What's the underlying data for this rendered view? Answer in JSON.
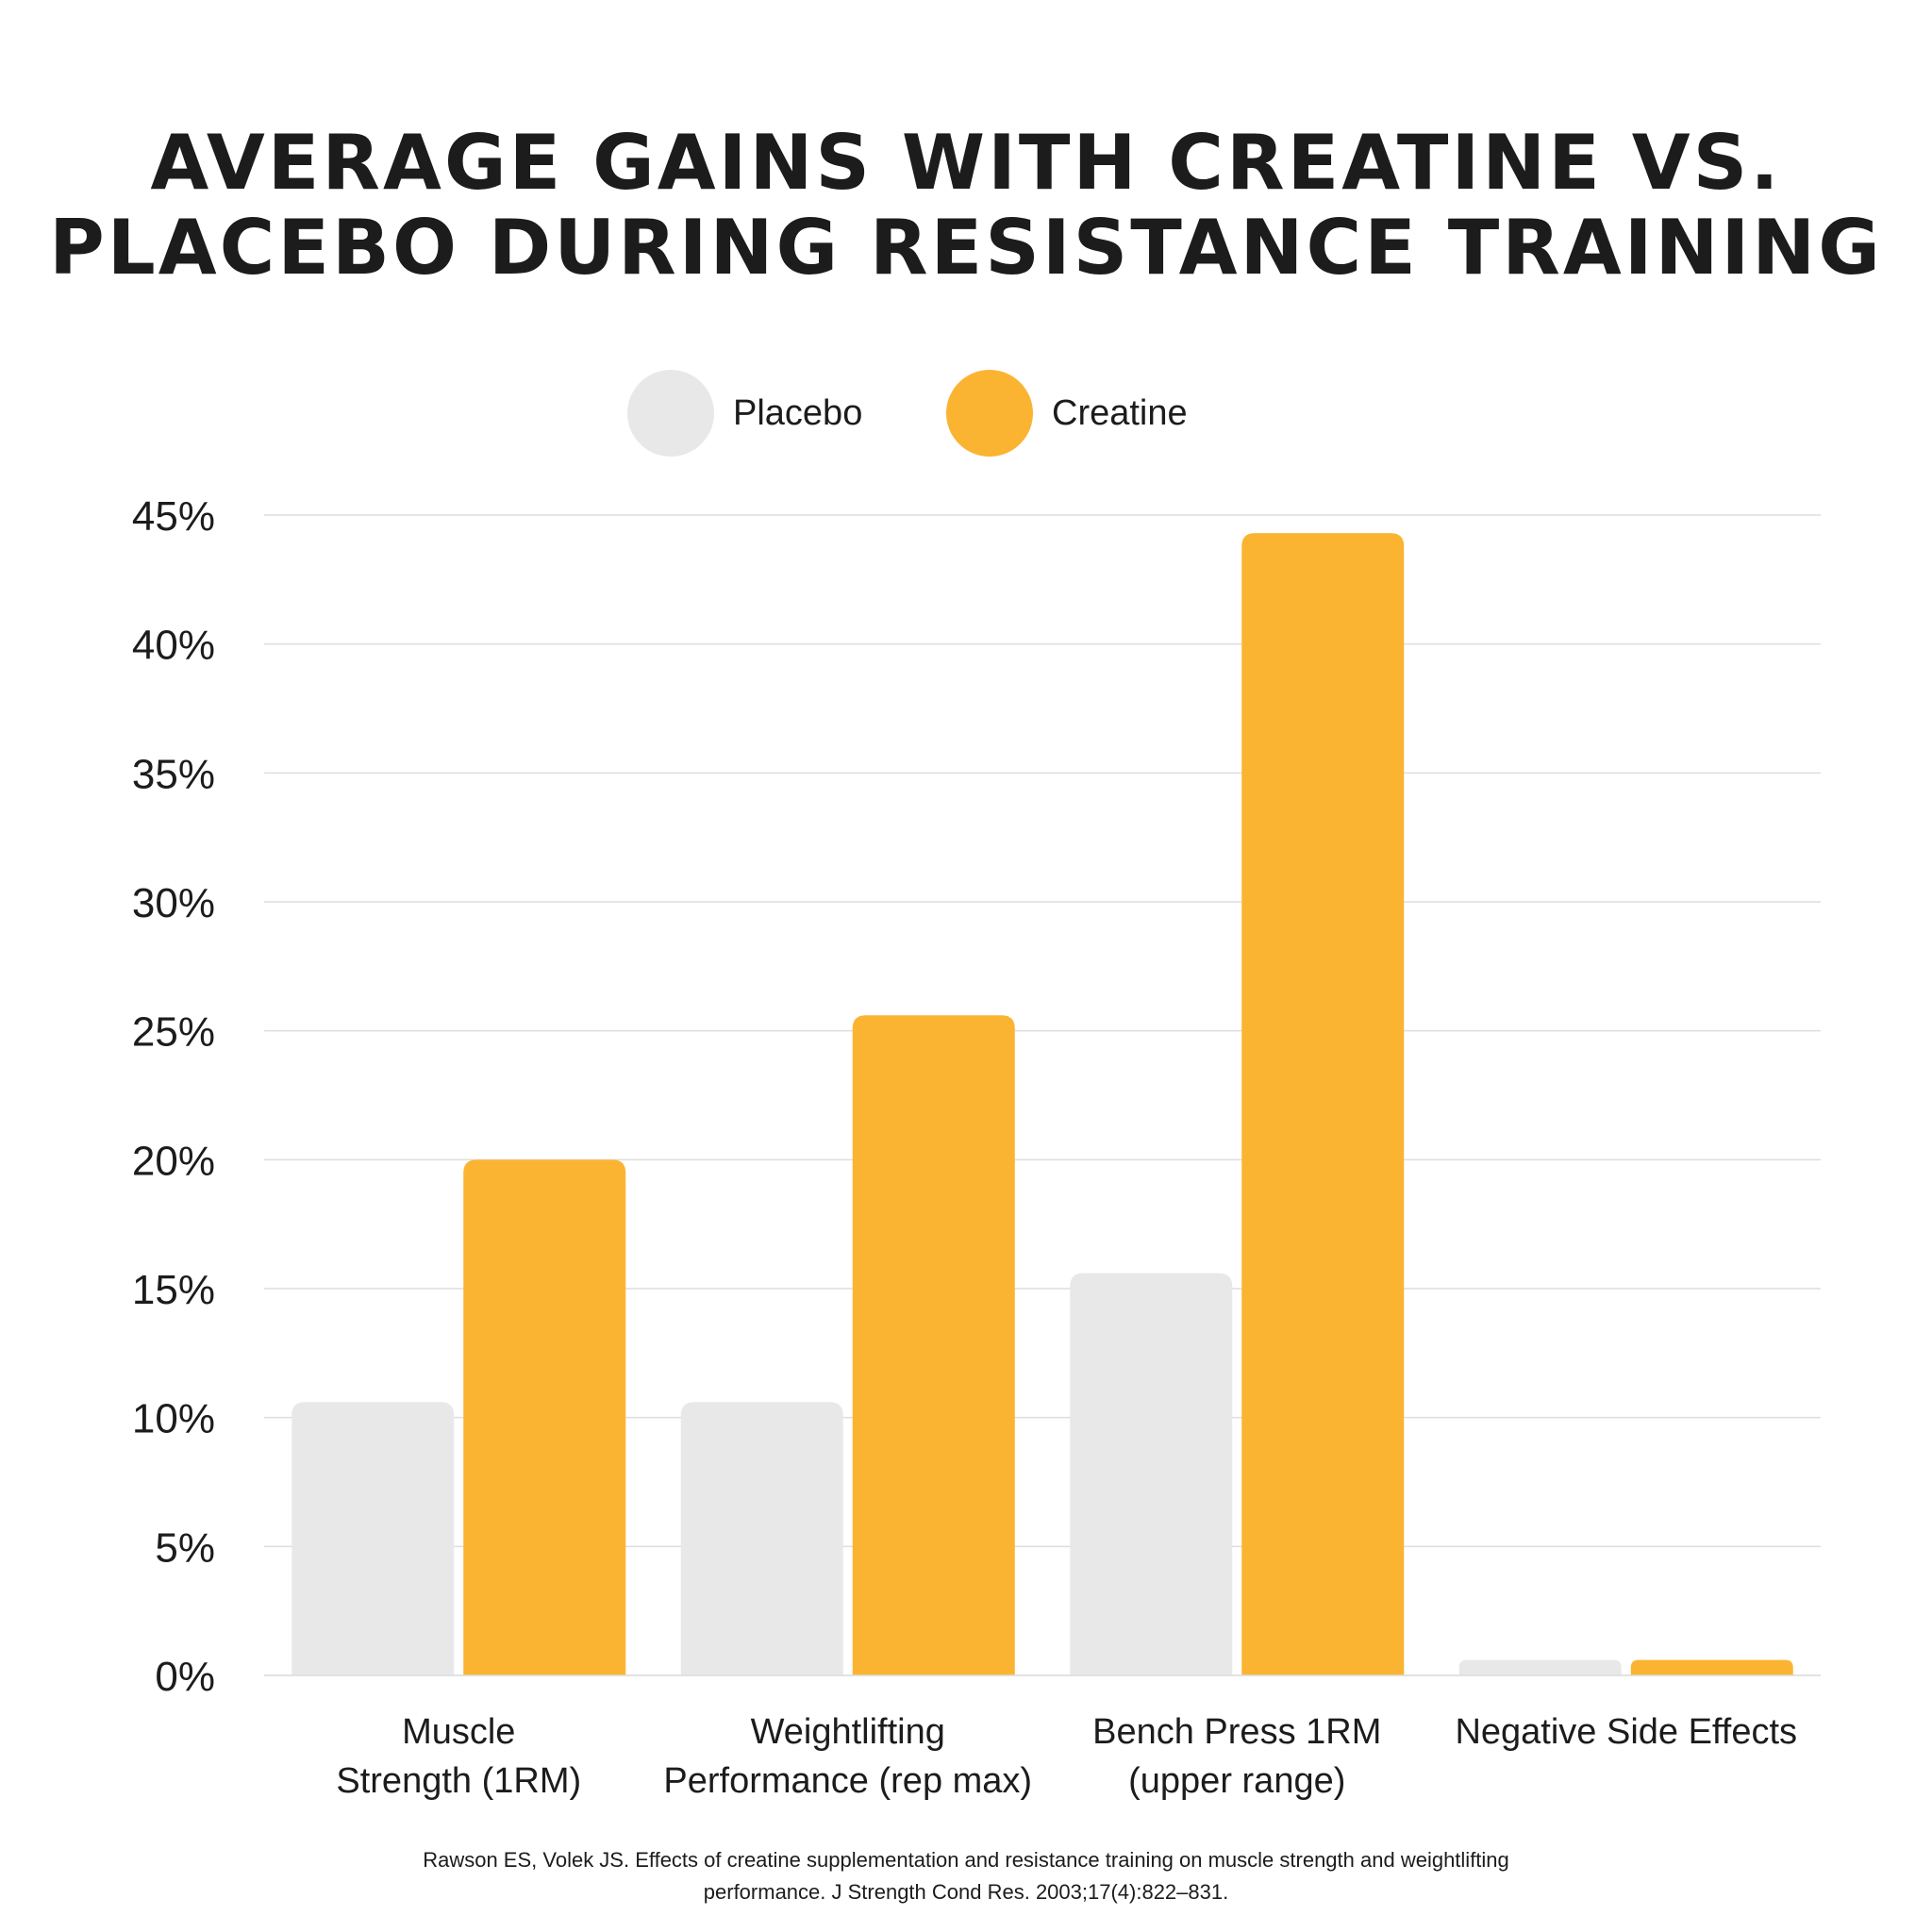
{
  "title_lines": [
    "AVERAGE GAINS WITH CREATINE VS.",
    "PLACEBO DURING RESISTANCE TRAINING"
  ],
  "legend": [
    {
      "label": "Placebo",
      "color": "#e8e8e8"
    },
    {
      "label": "Creatine",
      "color": "#fbb432"
    }
  ],
  "source_lines": [
    "Rawson ES, Volek JS. Effects of creatine supplementation and resistance training on muscle strength and weightlifting",
    "performance. J Strength Cond Res. 2003;17(4):822–831."
  ],
  "chart_data": {
    "type": "bar",
    "title": "AVERAGE GAINS WITH CREATINE VS. PLACEBO DURING RESISTANCE TRAINING",
    "categories": [
      [
        "Muscle",
        "Strength (1RM)"
      ],
      [
        "Weightlifting",
        "Performance (rep max)"
      ],
      [
        "Bench Press 1RM",
        "(upper range)"
      ],
      [
        "Negative Side Effects"
      ]
    ],
    "series": [
      {
        "name": "Placebo",
        "color": "#e8e8e8",
        "values": [
          10.6,
          10.6,
          15.6,
          0.6
        ]
      },
      {
        "name": "Creatine",
        "color": "#fbb432",
        "values": [
          20,
          25.6,
          44.3,
          0.6
        ]
      }
    ],
    "yticks": [
      "0%",
      "5%",
      "10%",
      "15%",
      "20%",
      "25%",
      "30%",
      "35%",
      "40%",
      "45%"
    ],
    "ylim": [
      0,
      45
    ],
    "grid": true,
    "legend_position": "top-center"
  }
}
